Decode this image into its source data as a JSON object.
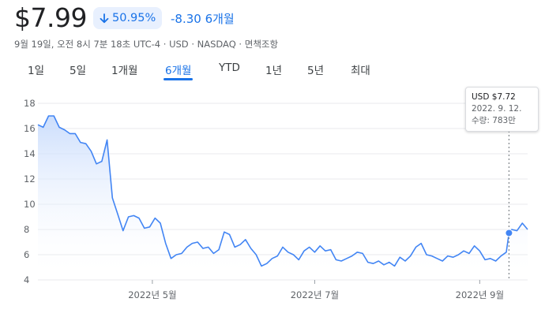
{
  "header": {
    "price": "$7.99",
    "change_pct": "50.95%",
    "change_abs": "-8.30 6개월",
    "meta": "9월 19일, 오전 8시 7분 18초 UTC-4 · USD · NASDAQ · 면책조항"
  },
  "tabs": [
    {
      "label": "1일",
      "active": false
    },
    {
      "label": "5일",
      "active": false
    },
    {
      "label": "1개월",
      "active": false
    },
    {
      "label": "6개월",
      "active": true
    },
    {
      "label": "YTD",
      "active": false
    },
    {
      "label": "1년",
      "active": false
    },
    {
      "label": "5년",
      "active": false
    },
    {
      "label": "최대",
      "active": false
    }
  ],
  "tooltip": {
    "price": "USD $7.72",
    "date": "2022. 9. 12.",
    "volume": "수량: 783만"
  },
  "colors": {
    "accent": "#1a73e8",
    "line": "#4285f4",
    "fill_top": "#c6dafc",
    "grid": "#e8eaed"
  },
  "chart_data": {
    "type": "area",
    "title": "",
    "xlabel": "",
    "ylabel": "",
    "ylim": [
      4,
      18
    ],
    "yticks": [
      "4",
      "6",
      "8",
      "10",
      "12",
      "14",
      "16",
      "18"
    ],
    "xticks": [
      {
        "label": "2022년 5월",
        "date": "2022-05-01"
      },
      {
        "label": "2022년 7월",
        "date": "2022-07-01"
      },
      {
        "label": "2022년 9월",
        "date": "2022-09-01"
      }
    ],
    "xrange": [
      "2022-03-19",
      "2022-09-19"
    ],
    "grid": true,
    "highlight": {
      "date": "2022-09-12",
      "value": 7.72
    },
    "x": [
      "2022-03-19",
      "2022-03-21",
      "2022-03-23",
      "2022-03-25",
      "2022-03-27",
      "2022-03-29",
      "2022-03-31",
      "2022-04-02",
      "2022-04-04",
      "2022-04-06",
      "2022-04-08",
      "2022-04-10",
      "2022-04-12",
      "2022-04-14",
      "2022-04-16",
      "2022-04-18",
      "2022-04-20",
      "2022-04-22",
      "2022-04-24",
      "2022-04-26",
      "2022-04-28",
      "2022-04-30",
      "2022-05-02",
      "2022-05-04",
      "2022-05-06",
      "2022-05-08",
      "2022-05-10",
      "2022-05-12",
      "2022-05-14",
      "2022-05-16",
      "2022-05-18",
      "2022-05-20",
      "2022-05-22",
      "2022-05-24",
      "2022-05-26",
      "2022-05-28",
      "2022-05-30",
      "2022-06-01",
      "2022-06-03",
      "2022-06-05",
      "2022-06-07",
      "2022-06-09",
      "2022-06-11",
      "2022-06-13",
      "2022-06-15",
      "2022-06-17",
      "2022-06-19",
      "2022-06-21",
      "2022-06-23",
      "2022-06-25",
      "2022-06-27",
      "2022-06-29",
      "2022-07-01",
      "2022-07-03",
      "2022-07-05",
      "2022-07-07",
      "2022-07-09",
      "2022-07-11",
      "2022-07-13",
      "2022-07-15",
      "2022-07-17",
      "2022-07-19",
      "2022-07-21",
      "2022-07-23",
      "2022-07-25",
      "2022-07-27",
      "2022-07-29",
      "2022-07-31",
      "2022-08-02",
      "2022-08-04",
      "2022-08-06",
      "2022-08-08",
      "2022-08-10",
      "2022-08-12",
      "2022-08-14",
      "2022-08-16",
      "2022-08-18",
      "2022-08-20",
      "2022-08-22",
      "2022-08-24",
      "2022-08-26",
      "2022-08-28",
      "2022-08-30",
      "2022-09-01",
      "2022-09-03",
      "2022-09-05",
      "2022-09-07",
      "2022-09-09",
      "2022-09-11",
      "2022-09-12",
      "2022-09-13",
      "2022-09-15",
      "2022-09-17",
      "2022-09-19"
    ],
    "values": [
      16.3,
      16.1,
      17.0,
      17.0,
      16.1,
      15.9,
      15.6,
      15.6,
      14.9,
      14.8,
      14.2,
      13.2,
      13.4,
      15.1,
      10.5,
      9.2,
      7.9,
      9.0,
      9.1,
      8.9,
      8.1,
      8.2,
      8.9,
      8.5,
      6.9,
      5.7,
      6.0,
      6.1,
      6.6,
      6.9,
      7.0,
      6.5,
      6.6,
      6.1,
      6.4,
      7.8,
      7.6,
      6.6,
      6.8,
      7.2,
      6.5,
      6.0,
      5.1,
      5.3,
      5.7,
      5.9,
      6.6,
      6.2,
      6.0,
      5.6,
      6.3,
      6.6,
      6.2,
      6.7,
      6.3,
      6.4,
      5.6,
      5.5,
      5.7,
      5.9,
      6.2,
      6.1,
      5.4,
      5.3,
      5.5,
      5.2,
      5.4,
      5.1,
      5.8,
      5.5,
      5.9,
      6.6,
      6.9,
      6.0,
      5.9,
      5.7,
      5.5,
      5.9,
      5.8,
      6.0,
      6.3,
      6.1,
      6.7,
      6.3,
      5.6,
      5.7,
      5.5,
      5.9,
      6.2,
      7.72,
      8.0,
      7.9,
      8.5,
      8.0
    ]
  }
}
